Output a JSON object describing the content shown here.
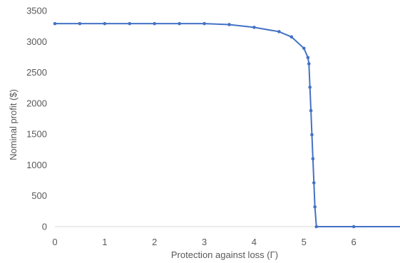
{
  "chart_data": {
    "type": "line",
    "title": "",
    "xlabel": "Protection against loss (Γ)",
    "ylabel": "Nominal  profit ($)",
    "xlim": [
      0,
      7
    ],
    "ylim": [
      0,
      3500
    ],
    "xticks": [
      "0",
      "1",
      "2",
      "3",
      "4",
      "5",
      "6"
    ],
    "yticks": [
      "0",
      "500",
      "1000",
      "1500",
      "2000",
      "2500",
      "3000",
      "3500"
    ],
    "grid": false,
    "legend": "none",
    "series": [
      {
        "color": "#4472C4",
        "x": [
          0,
          0.5,
          1,
          1.5,
          2,
          2.5,
          3,
          3.5,
          4,
          4.5,
          4.75,
          5,
          5.08,
          5.1,
          5.12,
          5.14,
          5.16,
          5.18,
          5.2,
          5.22,
          5.25,
          6,
          7
        ],
        "y": [
          3290,
          3290,
          3290,
          3290,
          3290,
          3290,
          3290,
          3275,
          3230,
          3160,
          3075,
          2890,
          2740,
          2640,
          2260,
          1880,
          1490,
          1100,
          710,
          320,
          0,
          0,
          0
        ],
        "marker_count": 22
      }
    ]
  }
}
